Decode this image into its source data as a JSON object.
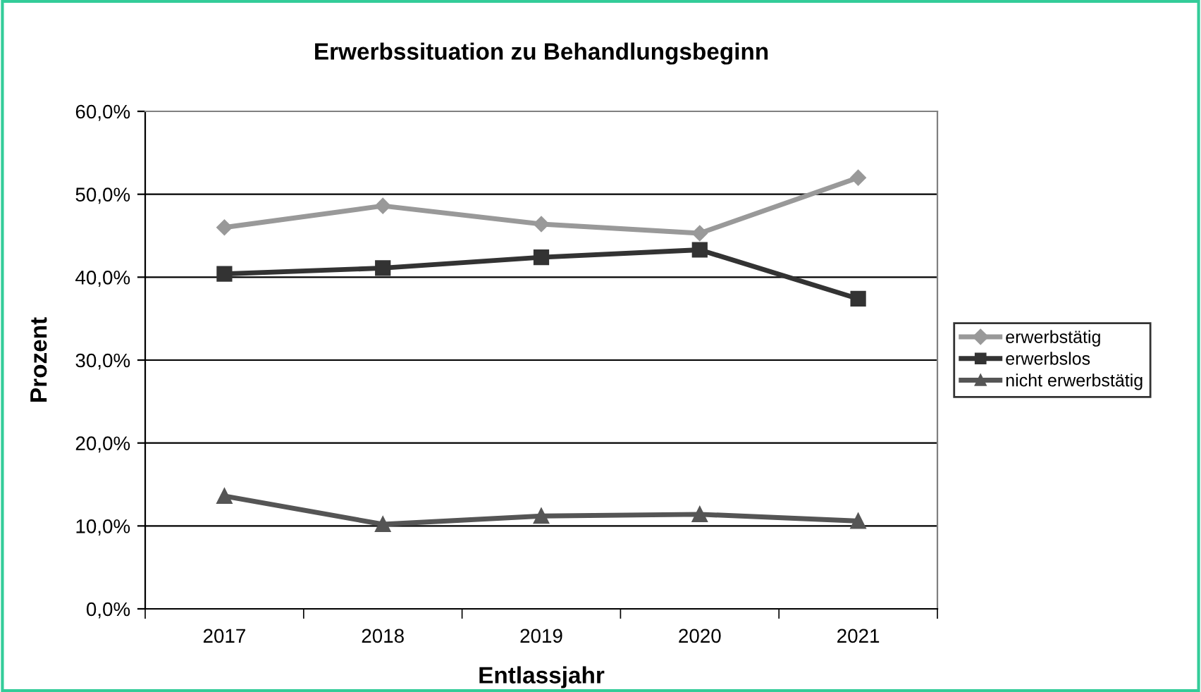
{
  "chart_data": {
    "type": "line",
    "title": "Erwerbssituation zu Behandlungsbeginn",
    "xlabel": "Entlassjahr",
    "ylabel": "Prozent",
    "categories": [
      "2017",
      "2018",
      "2019",
      "2020",
      "2021"
    ],
    "series": [
      {
        "name": "erwerbstätig",
        "color": "#999999",
        "marker": "diamond",
        "values": [
          46.0,
          48.6,
          46.4,
          45.3,
          52.0
        ]
      },
      {
        "name": "erwerbslos",
        "color": "#333333",
        "marker": "square",
        "values": [
          40.4,
          41.1,
          42.4,
          43.3,
          37.4
        ]
      },
      {
        "name": "nicht erwerbstätig",
        "color": "#555555",
        "marker": "triangle",
        "values": [
          13.6,
          10.2,
          11.2,
          11.4,
          10.6
        ]
      }
    ],
    "ylim": [
      0,
      60
    ],
    "yticks": [
      {
        "value": 0,
        "label": "0,0%"
      },
      {
        "value": 10,
        "label": "10,0%"
      },
      {
        "value": 20,
        "label": "20,0%"
      },
      {
        "value": 30,
        "label": "30,0%"
      },
      {
        "value": 40,
        "label": "40,0%"
      },
      {
        "value": 50,
        "label": "50,0%"
      },
      {
        "value": 60,
        "label": "60,0%"
      }
    ],
    "grid": "y",
    "legend": "right"
  }
}
